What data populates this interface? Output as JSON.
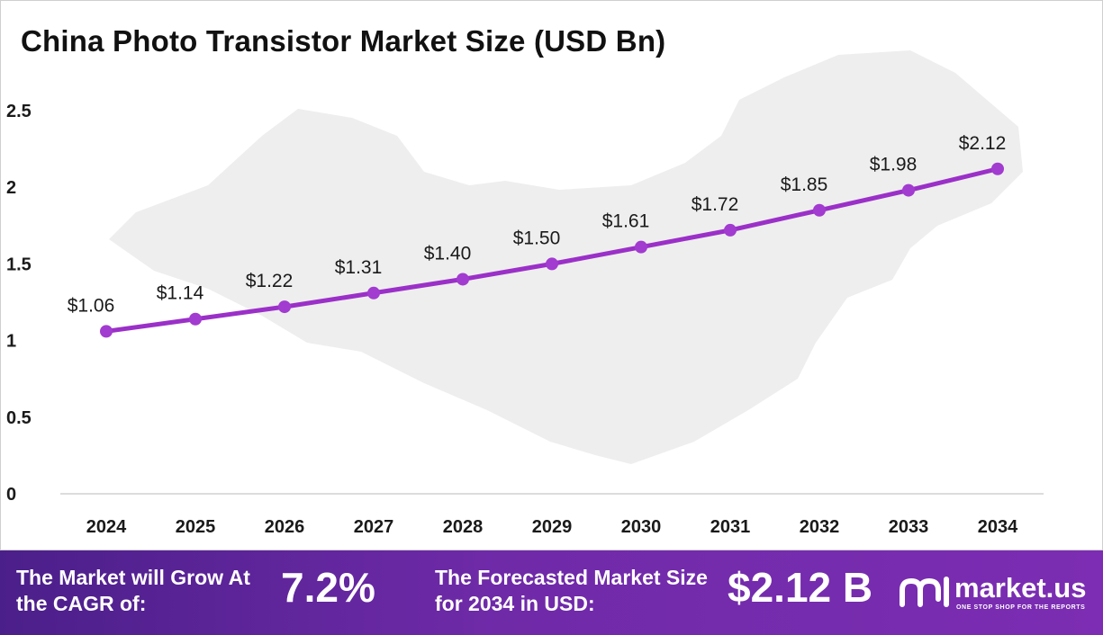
{
  "title": "China Photo Transistor Market Size (USD Bn)",
  "colors": {
    "line": "#9b30c8",
    "marker": "#a23bd0",
    "map": "#efefef",
    "footer_start": "#4b1f8a",
    "footer_end": "#7c2db3"
  },
  "chart_data": {
    "type": "line",
    "title": "China Photo Transistor Market Size (USD Bn)",
    "xlabel": "",
    "ylabel": "",
    "categories": [
      "2024",
      "2025",
      "2026",
      "2027",
      "2028",
      "2029",
      "2030",
      "2031",
      "2032",
      "2033",
      "2034"
    ],
    "values": [
      1.06,
      1.14,
      1.22,
      1.31,
      1.4,
      1.5,
      1.61,
      1.72,
      1.85,
      1.98,
      2.12
    ],
    "data_labels": [
      "$1.06",
      "$1.14",
      "$1.22",
      "$1.31",
      "$1.40",
      "$1.50",
      "$1.61",
      "$1.72",
      "$1.85",
      "$1.98",
      "$2.12"
    ],
    "y_ticks": [
      "0",
      "0.5",
      "1",
      "1.5",
      "2",
      "2.5"
    ],
    "ylim": [
      0,
      2.5
    ],
    "grid": false,
    "legend": "none"
  },
  "footer": {
    "cagr_label": "The Market will Grow At the CAGR of:",
    "cagr_value": "7.2%",
    "forecast_label": "The Forecasted Market Size for 2034 in USD:",
    "forecast_value": "$2.12 B",
    "brand_name": "market.us",
    "brand_tagline": "ONE STOP SHOP FOR THE REPORTS",
    "brand_icon": "market-us-logo-icon"
  }
}
